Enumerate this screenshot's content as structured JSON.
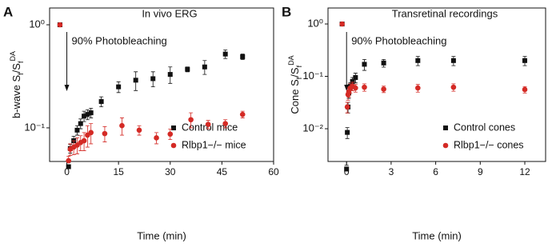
{
  "chart_data": [
    {
      "type": "scatter",
      "panel": "A",
      "title": "In vivo ERG",
      "xlabel": "Time (min)",
      "ylabel": [
        "b-wave S",
        "f",
        "/S",
        "f",
        "DA"
      ],
      "yscale": "log",
      "annotation": "90% Photobleaching",
      "xlim": [
        -5,
        60
      ],
      "xticks": [
        0,
        15,
        30,
        45,
        60
      ],
      "ylim": [
        0.0472,
        1.455
      ],
      "yticks": [
        {
          "value": 1,
          "label": "10⁰"
        },
        {
          "value": 0.1,
          "label": "10⁻¹"
        }
      ],
      "legend": "lower right",
      "series": [
        {
          "name": "Control mice",
          "color": "#111111",
          "marker": "square",
          "x": [
            -2,
            0.5,
            1,
            2,
            3,
            4,
            5,
            6,
            7,
            10,
            15,
            20,
            25,
            30,
            35,
            40,
            46,
            51
          ],
          "values": [
            1.0,
            0.042,
            0.063,
            0.075,
            0.095,
            0.11,
            0.13,
            0.135,
            0.14,
            0.18,
            0.25,
            0.29,
            0.3,
            0.33,
            0.37,
            0.39,
            0.52,
            0.49
          ],
          "errors": [
            0.02,
            0.004,
            0.006,
            0.008,
            0.01,
            0.012,
            0.015,
            0.015,
            0.015,
            0.02,
            0.03,
            0.06,
            0.05,
            0.06,
            0.02,
            0.06,
            0.05,
            0.03
          ]
        },
        {
          "name": "Rlbp1−/− mice",
          "color": "#d42a25",
          "marker": "circle",
          "x": [
            -2,
            0.5,
            1,
            2,
            3,
            4,
            5,
            6,
            7,
            11,
            16,
            21,
            26,
            30,
            36,
            41,
            46,
            51
          ],
          "values": [
            1.0,
            0.048,
            0.062,
            0.065,
            0.068,
            0.072,
            0.075,
            0.085,
            0.09,
            0.088,
            0.105,
            0.095,
            0.08,
            0.087,
            0.12,
            0.108,
            0.11,
            0.135
          ],
          "errors": [
            0.02,
            0.005,
            0.008,
            0.01,
            0.012,
            0.012,
            0.015,
            0.02,
            0.02,
            0.015,
            0.02,
            0.01,
            0.01,
            0.01,
            0.02,
            0.01,
            0.01,
            0.01
          ]
        }
      ]
    },
    {
      "type": "scatter",
      "panel": "B",
      "title": "Transretinal recordings",
      "xlabel": "Time (min)",
      "ylabel": [
        "Cone S",
        "f",
        "/S",
        "f",
        "DA"
      ],
      "yscale": "log",
      "annotation": "90% Photobleaching",
      "xlim": [
        -1.25,
        13.4
      ],
      "xticks": [
        0,
        3,
        6,
        9,
        12
      ],
      "ylim": [
        0.00237,
        2.02
      ],
      "yticks": [
        {
          "value": 1,
          "label": "10⁰"
        },
        {
          "value": 0.1,
          "label": "10⁻¹"
        },
        {
          "value": 0.01,
          "label": "10⁻²"
        }
      ],
      "legend": "lower right",
      "series": [
        {
          "name": "Control cones",
          "color": "#111111",
          "marker": "square",
          "x": [
            -0.3,
            0,
            0.05,
            0.1,
            0.15,
            0.25,
            0.4,
            0.6,
            1.2,
            2.5,
            4.8,
            7.2,
            12
          ],
          "values": [
            1.0,
            0.0017,
            0.0085,
            0.026,
            0.048,
            0.065,
            0.08,
            0.095,
            0.17,
            0.18,
            0.2,
            0.2,
            0.2
          ],
          "errors": [
            0.02,
            0.0003,
            0.002,
            0.006,
            0.01,
            0.01,
            0.015,
            0.02,
            0.04,
            0.03,
            0.04,
            0.04,
            0.04
          ]
        },
        {
          "name": "Rlbp1−/− cones",
          "color": "#d42a25",
          "marker": "circle",
          "x": [
            -0.3,
            0.05,
            0.1,
            0.15,
            0.25,
            0.4,
            0.6,
            1.2,
            2.5,
            4.8,
            7.2,
            12
          ],
          "values": [
            1.0,
            0.026,
            0.045,
            0.05,
            0.06,
            0.065,
            0.06,
            0.062,
            0.057,
            0.06,
            0.062,
            0.056
          ],
          "errors": [
            0.02,
            0.006,
            0.01,
            0.01,
            0.012,
            0.012,
            0.01,
            0.01,
            0.008,
            0.01,
            0.01,
            0.008
          ]
        }
      ]
    }
  ]
}
